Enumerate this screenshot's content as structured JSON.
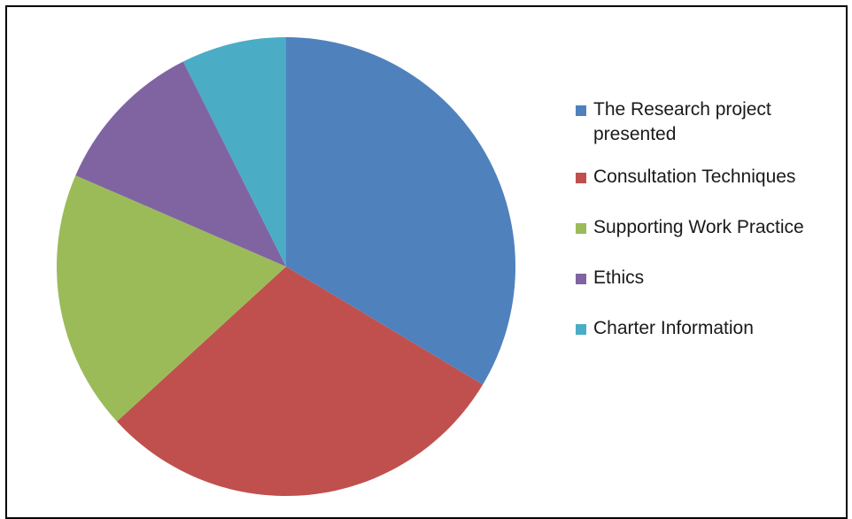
{
  "chart_data": {
    "type": "pie",
    "title": "",
    "categories": [
      "The Research  project presented",
      "Consultation Techniques",
      "Supporting Work Practice",
      "Ethics",
      "Charter Information"
    ],
    "values": [
      33.6,
      29.6,
      18.3,
      11.1,
      7.4
    ],
    "colors": [
      "#4f81bd",
      "#c0504d",
      "#9bbb59",
      "#8064a2",
      "#4bacc6"
    ],
    "legend_position": "right"
  }
}
